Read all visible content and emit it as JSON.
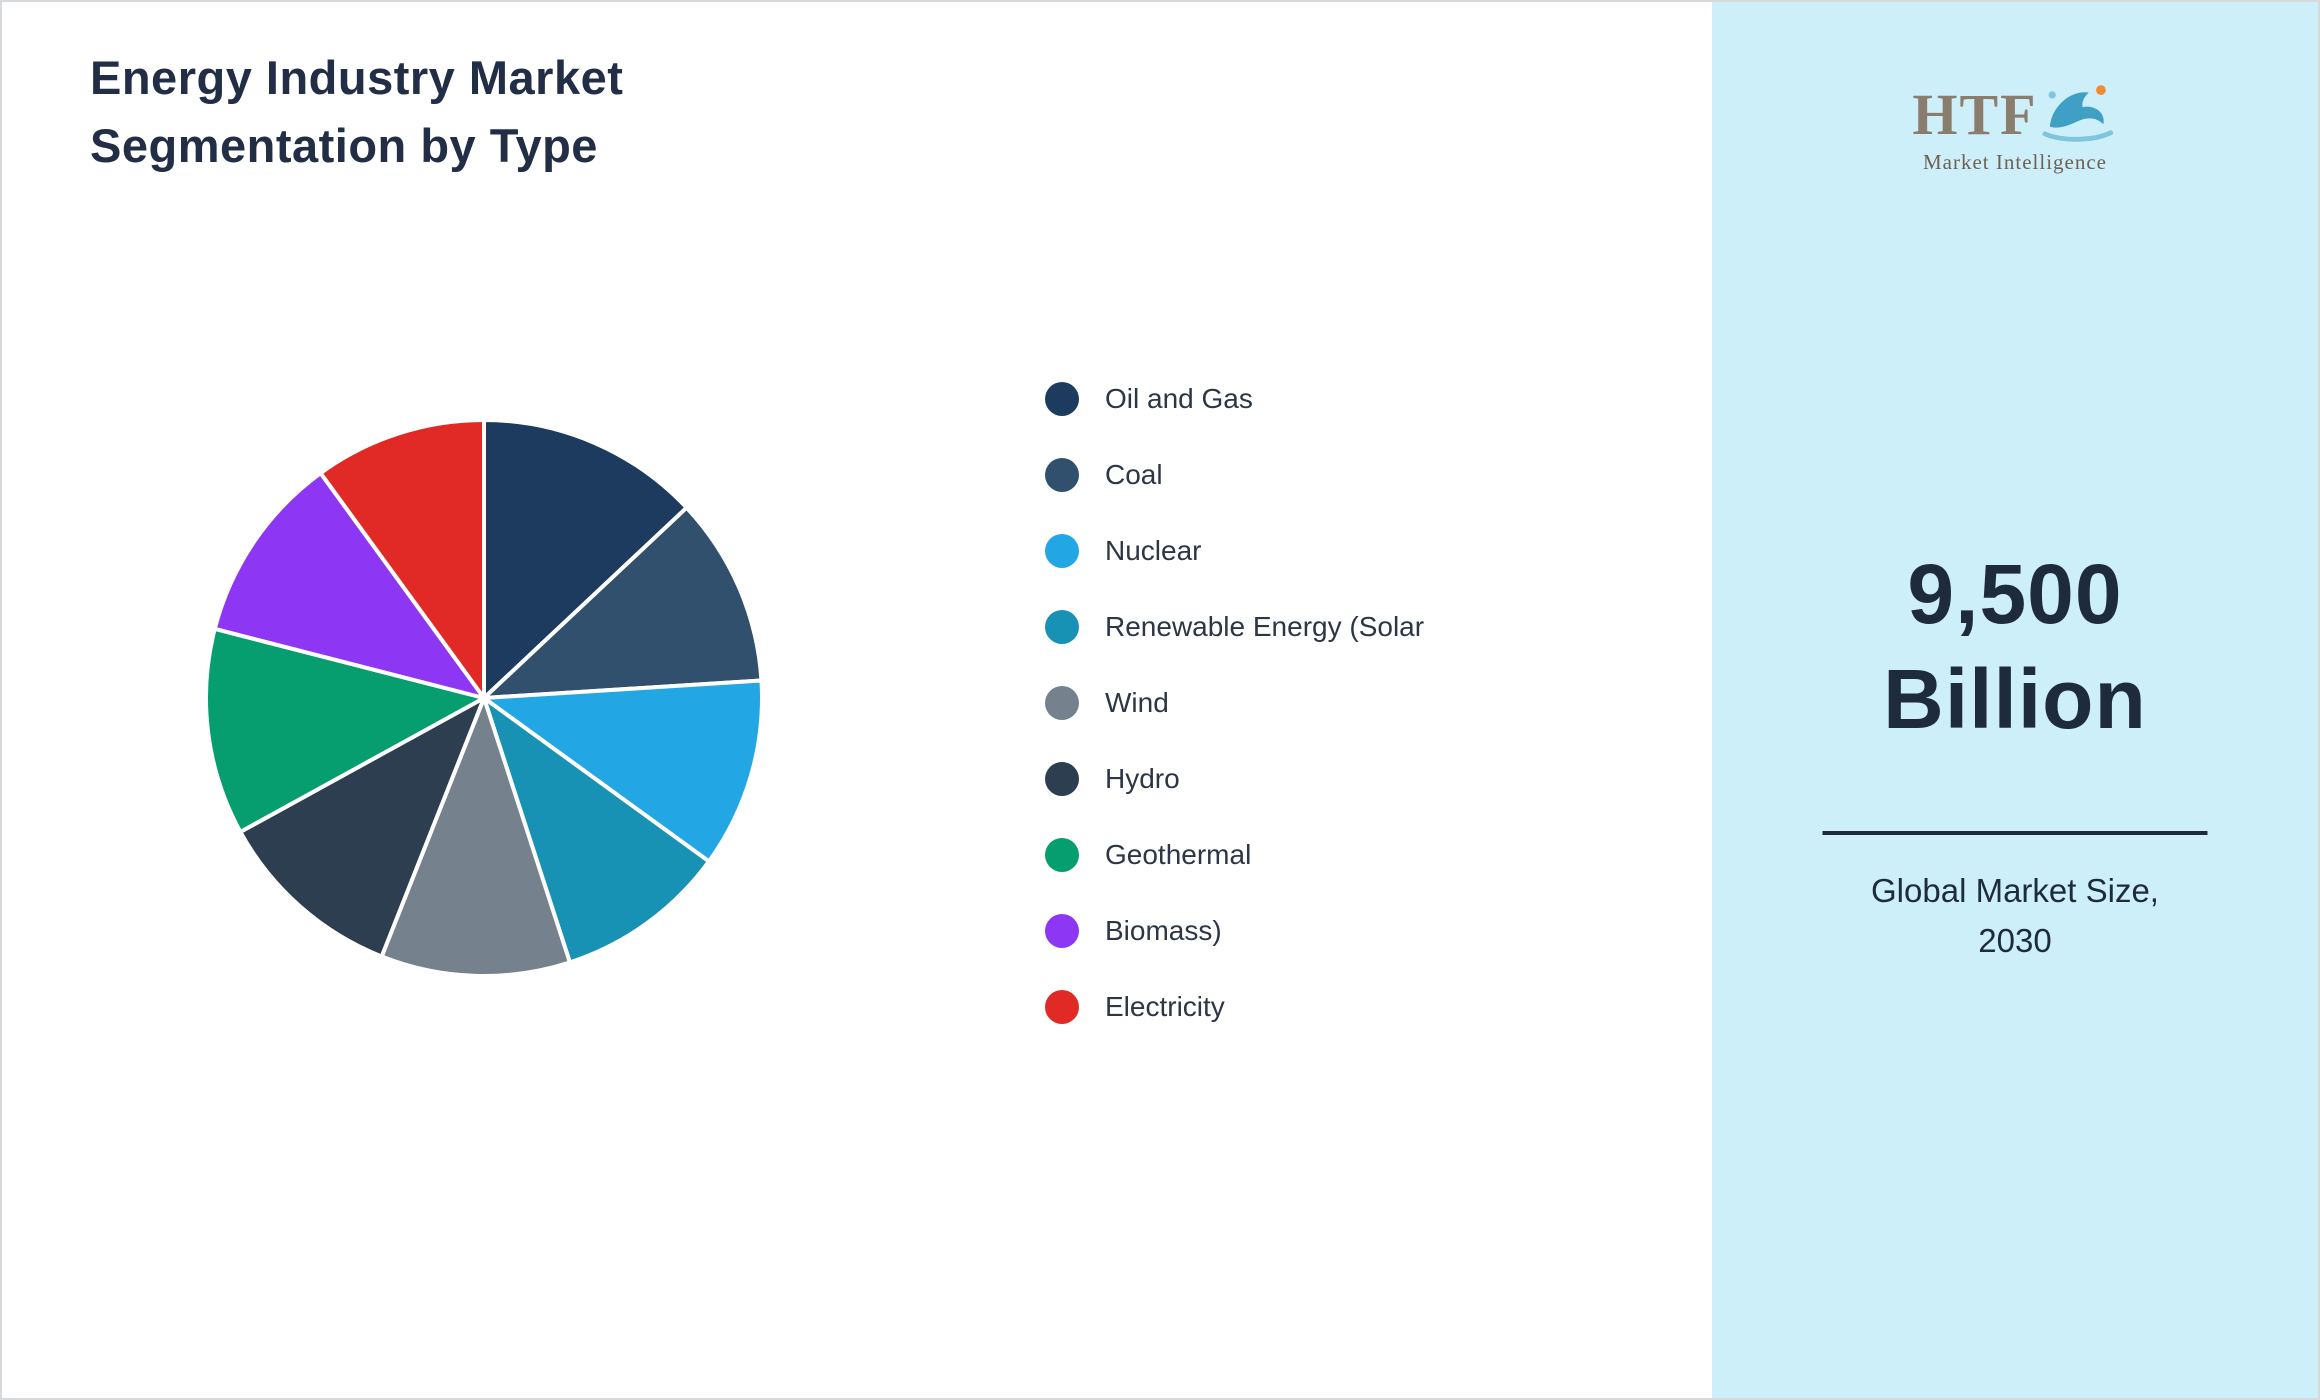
{
  "title": "Energy Industry Market\nSegmentation by Type",
  "logo": {
    "text": "HTF",
    "subtext": "Market Intelligence"
  },
  "panel": {
    "value": "9,500\nBillion",
    "caption": "Global Market Size,\n2030",
    "background": "#cdeff9",
    "text_color": "#1e2b3e"
  },
  "chart_data": {
    "type": "pie",
    "title": "Energy Industry Market Segmentation by Type",
    "labels": [
      "Oil and Gas",
      "Coal",
      "Nuclear",
      "Renewable Energy (Solar",
      "Wind",
      "Hydro",
      "Geothermal",
      "Biomass)",
      "Electricity"
    ],
    "values": [
      13,
      11,
      11,
      10,
      11,
      11,
      12,
      11,
      10
    ],
    "colors": [
      "#1d3a5f",
      "#31506e",
      "#22a7e4",
      "#1792b4",
      "#75818d",
      "#2d3e50",
      "#069e6f",
      "#8d36f4",
      "#e12a26"
    ],
    "legend_position": "right",
    "start_angle": -90,
    "direction": "clockwise",
    "slice_border_color": "#ffffff"
  }
}
